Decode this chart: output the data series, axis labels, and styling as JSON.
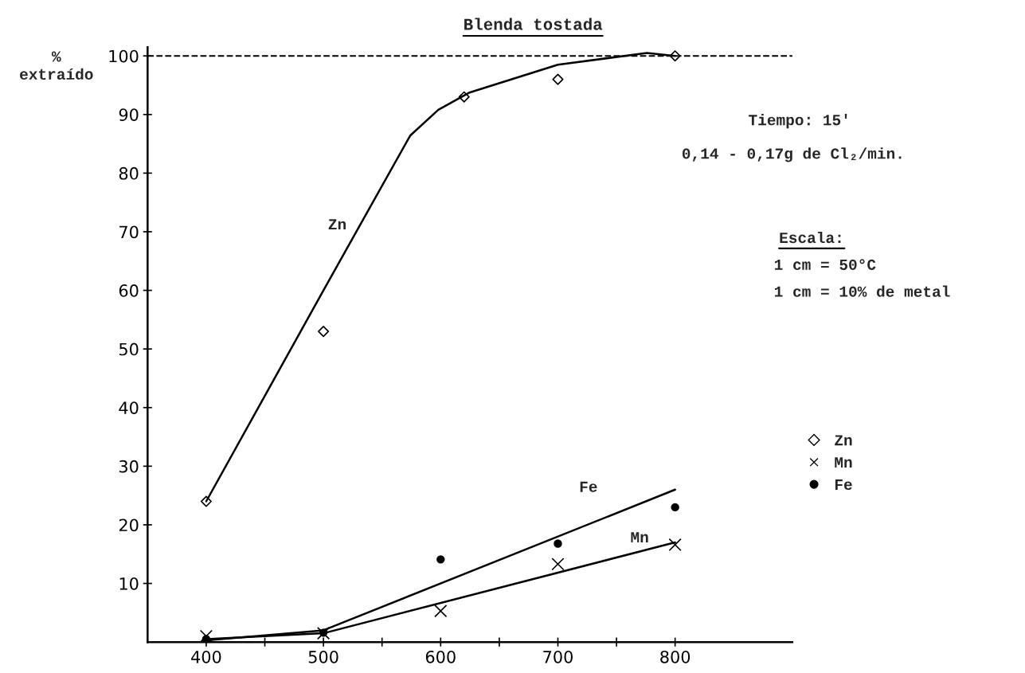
{
  "chart_data": {
    "type": "scatter",
    "title": "Blenda tostada",
    "ylabel": "%\nextraído",
    "xlim": [
      350,
      900
    ],
    "ylim": [
      0,
      101.5
    ],
    "xticks": [
      400,
      {
        "value": 450,
        "label": null
      },
      500,
      {
        "value": 550,
        "label": null
      },
      600,
      {
        "value": 650,
        "label": null
      },
      700,
      {
        "value": 750,
        "label": null
      },
      800
    ],
    "yticks": [
      10,
      20,
      30,
      40,
      50,
      60,
      70,
      80,
      90,
      100
    ],
    "series": [
      {
        "name": "Zn",
        "color": "#000000",
        "marker": "diamond",
        "x": [
          400,
          500,
          620,
          700,
          800
        ],
        "values": [
          24,
          53,
          93,
          96,
          100
        ]
      },
      {
        "name": "Mn",
        "color": "#000000",
        "marker": "cross",
        "x": [
          400,
          500,
          600,
          700,
          800
        ],
        "values": [
          1,
          1.5,
          5.3,
          13.3,
          16.6
        ]
      },
      {
        "name": "Fe",
        "color": "#000000",
        "marker": "circle",
        "x": [
          400,
          500,
          600,
          700,
          800
        ],
        "values": [
          0.5,
          1.6,
          14.1,
          16.8,
          23
        ]
      },
      {
        "type": "line",
        "color": "#000000",
        "x": [
          400,
          500,
          574,
          598,
          624,
          700,
          776,
          800
        ],
        "values": [
          24,
          60,
          86.4,
          90.8,
          93.7,
          98.5,
          100.5,
          100
        ]
      },
      {
        "type": "line",
        "color": "#000000",
        "x": [
          400,
          500,
          800
        ],
        "values": [
          0.3,
          2,
          26
        ]
      },
      {
        "type": "line",
        "color": "#000000",
        "x": [
          400,
          500,
          800
        ],
        "values": [
          0.5,
          1.5,
          17
        ]
      }
    ],
    "ref_lines": [
      {
        "axis": "y",
        "value": 100,
        "color": "#000000",
        "line_style": "dashed"
      }
    ],
    "annotations": [
      "Zn",
      "Fe",
      "Mn",
      "Tiempo: 15'",
      "0,14 - 0,17g de Cl₂/min.",
      "Escala:",
      "1 cm = 50°C",
      "1 cm = 10% de metal"
    ],
    "legend": "right",
    "grid": false
  }
}
